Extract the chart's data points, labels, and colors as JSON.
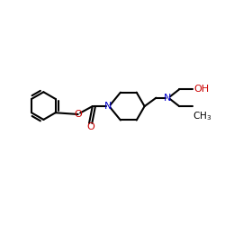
{
  "bg_color": "#ffffff",
  "line_color": "#000000",
  "N_color": "#0000cc",
  "O_color": "#cc0000",
  "line_width": 1.5,
  "figsize": [
    2.5,
    2.5
  ],
  "dpi": 100,
  "xlim": [
    0,
    10
  ],
  "ylim": [
    0,
    10
  ]
}
